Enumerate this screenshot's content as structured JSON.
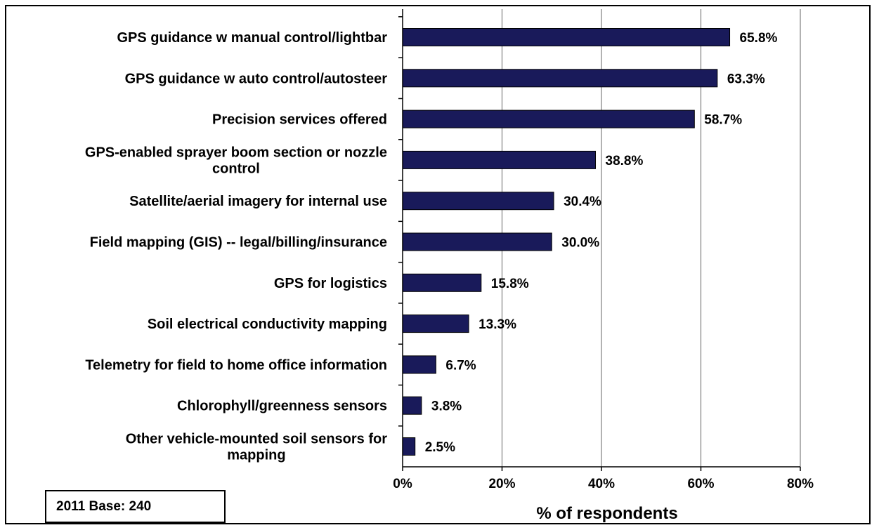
{
  "chart_data": {
    "type": "bar",
    "orientation": "horizontal",
    "categories": [
      "GPS guidance w manual control/lightbar",
      "GPS guidance w auto control/autosteer",
      "Precision services offered",
      "GPS-enabled sprayer boom section or nozzle control",
      "Satellite/aerial imagery for internal use",
      "Field mapping (GIS) -- legal/billing/insurance",
      "GPS for logistics",
      "Soil electrical conductivity mapping",
      "Telemetry for field to home office information",
      "Chlorophyll/greenness sensors",
      "Other vehicle-mounted soil sensors for mapping"
    ],
    "category_lines": [
      [
        "GPS guidance w manual control/lightbar"
      ],
      [
        "GPS guidance w auto control/autosteer"
      ],
      [
        "Precision services offered"
      ],
      [
        "GPS-enabled sprayer boom section or nozzle",
        "control"
      ],
      [
        "Satellite/aerial imagery for internal use"
      ],
      [
        "Field mapping (GIS) -- legal/billing/insurance"
      ],
      [
        "GPS for logistics"
      ],
      [
        "Soil electrical conductivity mapping"
      ],
      [
        "Telemetry for field to home office information"
      ],
      [
        "Chlorophyll/greenness sensors"
      ],
      [
        "Other vehicle-mounted soil sensors for",
        "mapping"
      ]
    ],
    "values": [
      65.8,
      63.3,
      58.7,
      38.8,
      30.4,
      30.0,
      15.8,
      13.3,
      6.7,
      3.8,
      2.5
    ],
    "value_labels": [
      "65.8%",
      "63.3%",
      "58.7%",
      "38.8%",
      "30.4%",
      "30.0%",
      "15.8%",
      "13.3%",
      "6.7%",
      "3.8%",
      "2.5%"
    ],
    "xlim": [
      0,
      80
    ],
    "xticks": [
      0,
      20,
      40,
      60,
      80
    ],
    "xtick_labels": [
      "0%",
      "20%",
      "40%",
      "60%",
      "80%"
    ],
    "xlabel": "% of respondents",
    "grid": "vertical",
    "bar_color": "#191a5a",
    "base_note": "2011 Base: 240"
  }
}
